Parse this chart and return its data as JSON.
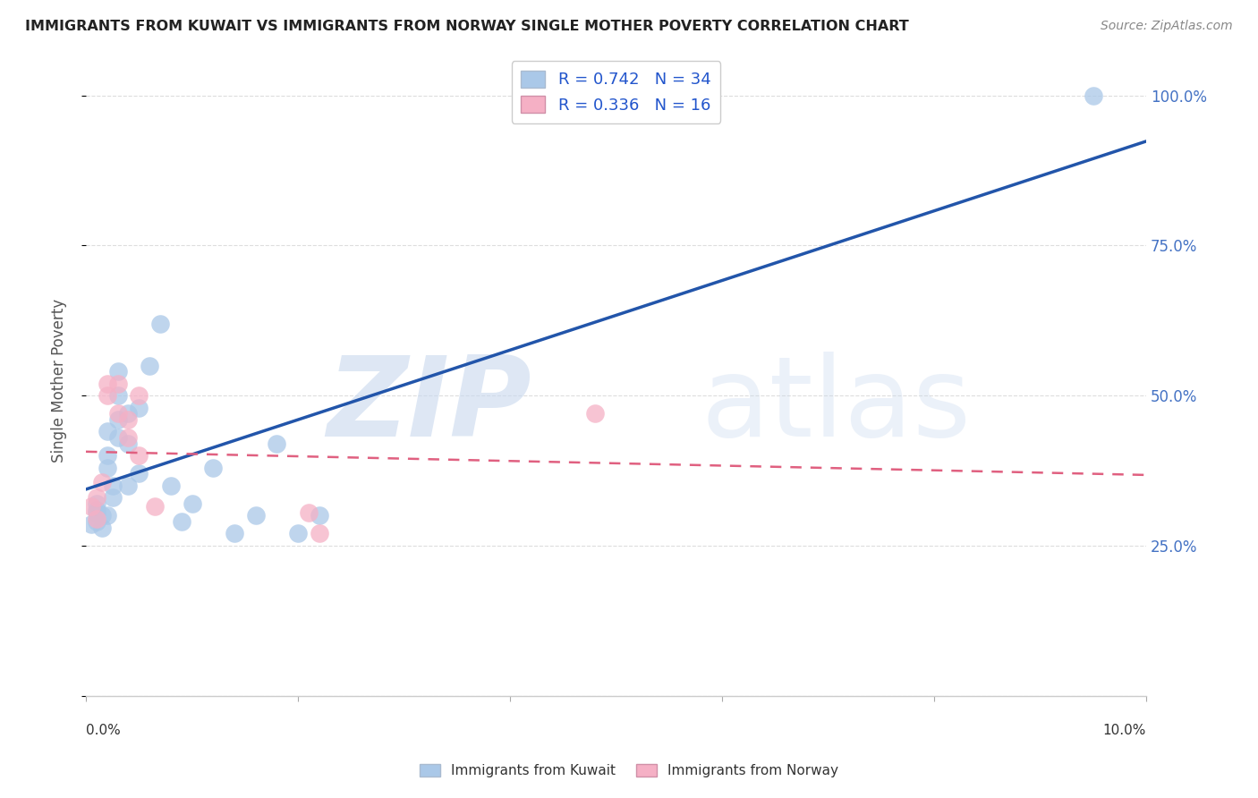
{
  "title": "IMMIGRANTS FROM KUWAIT VS IMMIGRANTS FROM NORWAY SINGLE MOTHER POVERTY CORRELATION CHART",
  "source": "Source: ZipAtlas.com",
  "ylabel": "Single Mother Poverty",
  "legend_label1": "Immigrants from Kuwait",
  "legend_label2": "Immigrants from Norway",
  "R1": 0.742,
  "N1": 34,
  "R2": 0.336,
  "N2": 16,
  "xlim": [
    0.0,
    0.1
  ],
  "ylim": [
    0.0,
    1.05
  ],
  "ytick_positions": [
    0.0,
    0.25,
    0.5,
    0.75,
    1.0
  ],
  "ytick_labels": [
    "",
    "25.0%",
    "50.0%",
    "75.0%",
    "100.0%"
  ],
  "color_kuwait": "#aac8e8",
  "color_norway": "#f5b0c5",
  "line_color_kuwait": "#2255aa",
  "line_color_norway": "#e06080",
  "watermark_zip": "ZIP",
  "watermark_atlas": "atlas",
  "background_color": "#ffffff",
  "grid_color": "#dddddd",
  "kuwait_x": [
    0.0005,
    0.001,
    0.001,
    0.001,
    0.001,
    0.0015,
    0.0015,
    0.002,
    0.002,
    0.002,
    0.002,
    0.0025,
    0.0025,
    0.003,
    0.003,
    0.003,
    0.003,
    0.004,
    0.004,
    0.004,
    0.005,
    0.005,
    0.006,
    0.007,
    0.008,
    0.009,
    0.01,
    0.012,
    0.014,
    0.016,
    0.018,
    0.02,
    0.022,
    0.095
  ],
  "kuwait_y": [
    0.285,
    0.29,
    0.31,
    0.305,
    0.32,
    0.28,
    0.3,
    0.38,
    0.4,
    0.3,
    0.44,
    0.35,
    0.33,
    0.46,
    0.43,
    0.5,
    0.54,
    0.47,
    0.42,
    0.35,
    0.48,
    0.37,
    0.55,
    0.62,
    0.35,
    0.29,
    0.32,
    0.38,
    0.27,
    0.3,
    0.42,
    0.27,
    0.3,
    1.0
  ],
  "norway_x": [
    0.0005,
    0.001,
    0.001,
    0.0015,
    0.002,
    0.002,
    0.003,
    0.003,
    0.004,
    0.004,
    0.005,
    0.005,
    0.0065,
    0.021,
    0.022,
    0.048
  ],
  "norway_y": [
    0.315,
    0.295,
    0.33,
    0.355,
    0.5,
    0.52,
    0.47,
    0.52,
    0.43,
    0.46,
    0.5,
    0.4,
    0.315,
    0.305,
    0.27,
    0.47
  ]
}
